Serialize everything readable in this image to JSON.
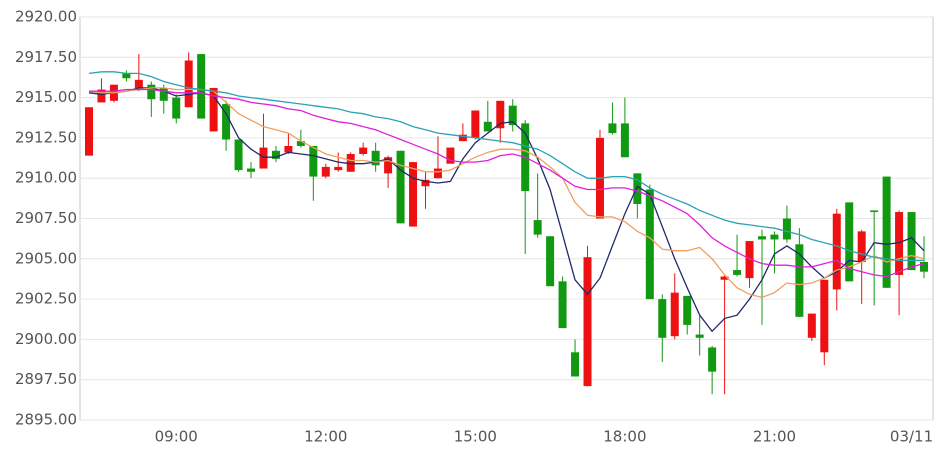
{
  "chart_data": {
    "type": "candlestick",
    "categories": [
      null,
      null,
      null,
      null,
      null,
      null,
      null,
      "09:00",
      null,
      null,
      null,
      null,
      null,
      null,
      null,
      null,
      null,
      null,
      null,
      "12:00",
      null,
      null,
      null,
      null,
      null,
      null,
      null,
      null,
      null,
      null,
      null,
      "15:00",
      null,
      null,
      null,
      null,
      null,
      null,
      null,
      null,
      null,
      null,
      null,
      "18:00",
      null,
      null,
      null,
      null,
      null,
      null,
      null,
      null,
      null,
      null,
      null,
      "21:00",
      null,
      null,
      null,
      null,
      null,
      null,
      null,
      null,
      null,
      null,
      "03/11",
      null
    ],
    "open": [
      2911.4,
      2914.7,
      2914.8,
      2916.5,
      2915.6,
      2915.8,
      2915.6,
      2915.0,
      2914.4,
      2917.7,
      2912.9,
      2914.6,
      2912.4,
      2910.6,
      2910.6,
      2911.7,
      2911.6,
      2912.3,
      2912.0,
      2910.1,
      2910.5,
      2910.4,
      2911.5,
      2911.7,
      2910.3,
      2911.7,
      2907.0,
      2909.5,
      2910.0,
      2910.9,
      2912.3,
      2912.5,
      2913.5,
      2913.1,
      2914.5,
      2913.4,
      2907.4,
      2906.4,
      2903.6,
      2899.2,
      2897.1,
      2907.5,
      2913.4,
      2913.4,
      2910.3,
      2909.3,
      2902.5,
      2900.2,
      2902.7,
      2900.3,
      2899.5,
      2903.7,
      2904.3,
      2903.8,
      2906.4,
      2906.5,
      2907.5,
      2905.9,
      2900.1,
      2899.2,
      2903.1,
      2908.5,
      2904.8,
      2908.0,
      2910.1,
      2904.0,
      2907.9,
      2904.8
    ],
    "high": [
      2914.4,
      2916.2,
      2915.8,
      2916.7,
      2917.7,
      2916.0,
      2915.8,
      2915.2,
      2917.8,
      2917.7,
      2915.6,
      2914.8,
      2912.4,
      2911.0,
      2914.0,
      2912.0,
      2912.8,
      2913.0,
      2912.0,
      2910.9,
      2911.6,
      2911.6,
      2912.2,
      2912.2,
      2911.4,
      2911.7,
      2911.0,
      2910.4,
      2912.6,
      2911.9,
      2913.4,
      2914.2,
      2914.8,
      2914.8,
      2914.9,
      2913.6,
      2910.3,
      2906.4,
      2903.9,
      2900.0,
      2905.8,
      2913.0,
      2914.7,
      2915.0,
      2910.3,
      2909.6,
      2902.8,
      2904.1,
      2902.7,
      2901.5,
      2899.6,
      2904.0,
      2906.5,
      2906.1,
      2906.8,
      2906.7,
      2908.3,
      2906.9,
      2901.6,
      2903.7,
      2908.1,
      2908.5,
      2906.8,
      2908.0,
      2910.1,
      2908.0,
      2907.9,
      2906.4
    ],
    "low": [
      2911.4,
      2914.7,
      2914.7,
      2916.0,
      2915.4,
      2913.8,
      2914.0,
      2913.4,
      2914.4,
      2913.7,
      2912.9,
      2911.7,
      2910.4,
      2910.0,
      2910.6,
      2911.0,
      2911.5,
      2911.9,
      2908.6,
      2910.0,
      2910.4,
      2910.4,
      2911.4,
      2910.4,
      2909.4,
      2907.2,
      2907.0,
      2908.1,
      2910.0,
      2910.9,
      2912.3,
      2912.4,
      2912.9,
      2912.2,
      2912.9,
      2905.3,
      2906.3,
      2903.3,
      2900.7,
      2897.7,
      2897.1,
      2907.5,
      2912.7,
      2911.3,
      2907.5,
      2902.5,
      2898.6,
      2900.0,
      2900.3,
      2899.0,
      2896.6,
      2896.6,
      2903.9,
      2903.2,
      2900.9,
      2904.1,
      2906.0,
      2901.4,
      2899.9,
      2898.4,
      2901.8,
      2903.6,
      2902.2,
      2902.1,
      2903.2,
      2901.5,
      2904.3,
      2903.8
    ],
    "close": [
      2914.4,
      2915.5,
      2915.8,
      2916.2,
      2916.1,
      2914.9,
      2914.8,
      2913.7,
      2917.3,
      2913.7,
      2915.6,
      2912.4,
      2910.5,
      2910.4,
      2911.9,
      2911.2,
      2912.0,
      2912.0,
      2910.1,
      2910.7,
      2910.7,
      2911.5,
      2911.9,
      2910.8,
      2911.3,
      2907.2,
      2911.0,
      2909.9,
      2910.6,
      2911.9,
      2912.7,
      2914.2,
      2912.9,
      2914.8,
      2913.3,
      2909.2,
      2906.5,
      2903.3,
      2900.7,
      2897.7,
      2905.1,
      2912.5,
      2912.8,
      2911.3,
      2908.4,
      2902.5,
      2900.1,
      2902.9,
      2900.9,
      2900.1,
      2898.0,
      2903.9,
      2904.0,
      2906.1,
      2906.2,
      2906.2,
      2906.2,
      2901.4,
      2901.6,
      2903.7,
      2907.8,
      2903.6,
      2906.7,
      2907.9,
      2903.2,
      2907.9,
      2904.3,
      2904.2
    ],
    "up_color": "#ee1111",
    "down_color": "#119911",
    "series": [
      {
        "color": "#1f2a6e",
        "values": [
          2915.3,
          2915.2,
          2915.3,
          2915.4,
          2915.6,
          2915.6,
          2915.4,
          2915.1,
          2915.2,
          2915.3,
          2915.1,
          2914.0,
          2912.5,
          2911.8,
          2911.3,
          2911.3,
          2911.6,
          2911.5,
          2911.4,
          2911.2,
          2911.0,
          2910.9,
          2910.9,
          2911.0,
          2911.2,
          2910.5,
          2910.0,
          2909.8,
          2909.7,
          2909.8,
          2911.2,
          2912.2,
          2912.8,
          2913.4,
          2913.5,
          2912.8,
          2911.2,
          2909.3,
          2906.5,
          2903.7,
          2902.8,
          2903.8,
          2905.8,
          2907.8,
          2909.5,
          2909.0,
          2907.0,
          2905.0,
          2903.2,
          2901.5,
          2900.5,
          2901.3,
          2901.5,
          2902.5,
          2903.7,
          2905.3,
          2905.8,
          2905.3,
          2904.5,
          2903.8,
          2904.2,
          2904.9,
          2904.8,
          2906.0,
          2905.9,
          2906.0,
          2906.3,
          2905.5
        ]
      },
      {
        "color": "#f0a060",
        "values": [
          2915.4,
          2915.3,
          2915.3,
          2915.4,
          2915.5,
          2915.6,
          2915.6,
          2915.5,
          2915.5,
          2915.5,
          2915.4,
          2914.7,
          2914.0,
          2913.6,
          2913.2,
          2913.0,
          2912.8,
          2912.3,
          2911.9,
          2911.5,
          2911.3,
          2911.1,
          2911.1,
          2911.0,
          2911.1,
          2910.8,
          2910.6,
          2910.4,
          2910.4,
          2910.5,
          2910.9,
          2911.3,
          2911.6,
          2911.8,
          2911.8,
          2911.7,
          2911.3,
          2910.7,
          2910.0,
          2908.5,
          2907.7,
          2907.6,
          2907.6,
          2907.3,
          2906.7,
          2906.3,
          2905.6,
          2905.5,
          2905.5,
          2905.7,
          2905.0,
          2904.0,
          2903.2,
          2902.8,
          2902.6,
          2902.9,
          2903.5,
          2903.4,
          2903.5,
          2903.8,
          2904.3,
          2904.5,
          2904.8,
          2905.2,
          2904.8,
          2905.0,
          2905.2,
          2905.0
        ]
      },
      {
        "color": "#e020d8",
        "values": [
          2915.4,
          2915.4,
          2915.4,
          2915.5,
          2915.5,
          2915.5,
          2915.4,
          2915.3,
          2915.3,
          2915.3,
          2915.1,
          2915.0,
          2914.9,
          2914.7,
          2914.6,
          2914.5,
          2914.3,
          2914.2,
          2913.9,
          2913.7,
          2913.5,
          2913.4,
          2913.2,
          2913.0,
          2912.7,
          2912.4,
          2912.1,
          2911.8,
          2911.5,
          2911.1,
          2911.0,
          2911.0,
          2911.1,
          2911.4,
          2911.5,
          2911.3,
          2910.9,
          2910.5,
          2910.0,
          2909.5,
          2909.3,
          2909.3,
          2909.4,
          2909.4,
          2909.2,
          2908.9,
          2908.6,
          2908.2,
          2907.8,
          2907.1,
          2906.3,
          2905.8,
          2905.4,
          2905.0,
          2904.7,
          2904.6,
          2904.6,
          2904.5,
          2904.5,
          2904.7,
          2904.9,
          2904.4,
          2904.2,
          2904.0,
          2903.9,
          2904.2,
          2904.5,
          2904.7
        ]
      },
      {
        "color": "#2aa3b3",
        "values": [
          2916.5,
          2916.6,
          2916.6,
          2916.5,
          2916.5,
          2916.3,
          2916.0,
          2915.8,
          2915.6,
          2915.5,
          2915.4,
          2915.3,
          2915.1,
          2915.0,
          2914.9,
          2914.8,
          2914.7,
          2914.6,
          2914.5,
          2914.4,
          2914.3,
          2914.1,
          2914.0,
          2913.8,
          2913.7,
          2913.5,
          2913.2,
          2913.0,
          2912.8,
          2912.7,
          2912.6,
          2912.5,
          2912.4,
          2912.3,
          2912.2,
          2912.0,
          2911.8,
          2911.4,
          2910.9,
          2910.4,
          2910.0,
          2910.0,
          2910.1,
          2910.1,
          2909.9,
          2909.4,
          2909.0,
          2908.7,
          2908.4,
          2908.0,
          2907.7,
          2907.4,
          2907.2,
          2907.1,
          2907.0,
          2906.9,
          2906.7,
          2906.5,
          2906.2,
          2906.0,
          2905.8,
          2905.5,
          2905.3,
          2905.1,
          2905.0,
          2904.9,
          2904.9,
          2904.9
        ]
      }
    ],
    "ylim": [
      2895,
      2920
    ],
    "yticks": [
      {
        "value": 2895,
        "label": "2895.00"
      },
      {
        "value": 2897.5,
        "label": "2897.50"
      },
      {
        "value": 2900,
        "label": "2900.00"
      },
      {
        "value": 2902.5,
        "label": "2902.50"
      },
      {
        "value": 2905,
        "label": "2905.00"
      },
      {
        "value": 2907.5,
        "label": "2907.50"
      },
      {
        "value": 2910,
        "label": "2910.00"
      },
      {
        "value": 2912.5,
        "label": "2912.50"
      },
      {
        "value": 2915,
        "label": "2915.00"
      },
      {
        "value": 2917.5,
        "label": "2917.50"
      },
      {
        "value": 2920,
        "label": "2920.00"
      }
    ],
    "grid": true
  }
}
